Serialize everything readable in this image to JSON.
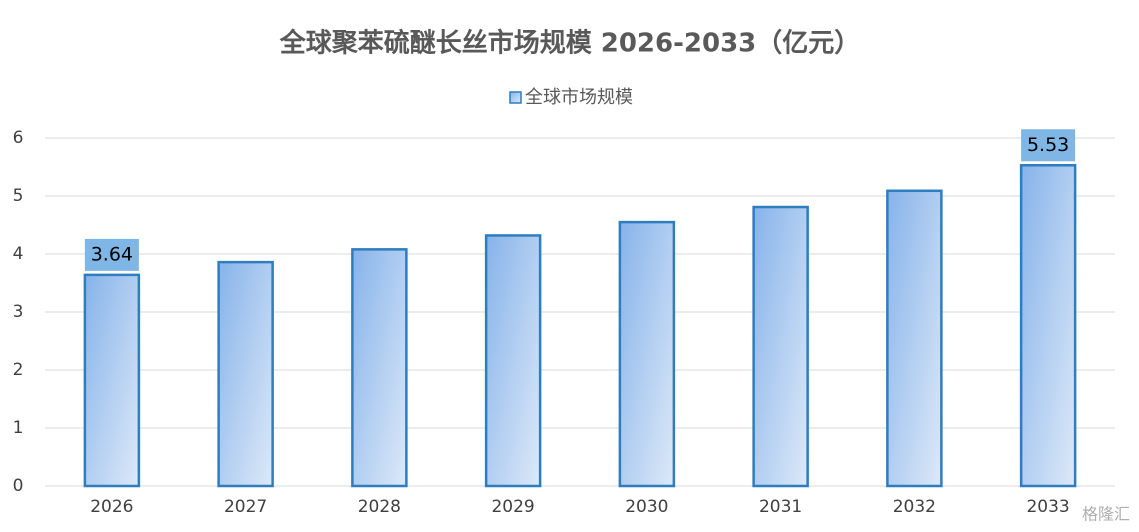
{
  "chart_data": {
    "type": "bar",
    "title": "全球聚苯硫醚长丝市场规模 2026-2033（亿元）",
    "categories": [
      "2026",
      "2027",
      "2028",
      "2029",
      "2030",
      "2031",
      "2032",
      "2033"
    ],
    "series": [
      {
        "name": "全球市场规模",
        "color": "#2e7dbf",
        "values": [
          3.64,
          3.86,
          4.08,
          4.32,
          4.55,
          4.81,
          5.09,
          5.53
        ],
        "value_labels": [
          "3.64",
          null,
          null,
          null,
          null,
          null,
          null,
          "5.53"
        ]
      }
    ],
    "ylim": [
      0,
      6
    ],
    "yticks": [
      0,
      1,
      2,
      3,
      4,
      5,
      6
    ],
    "grid": true,
    "legend": "top",
    "watermark": "格隆汇"
  }
}
